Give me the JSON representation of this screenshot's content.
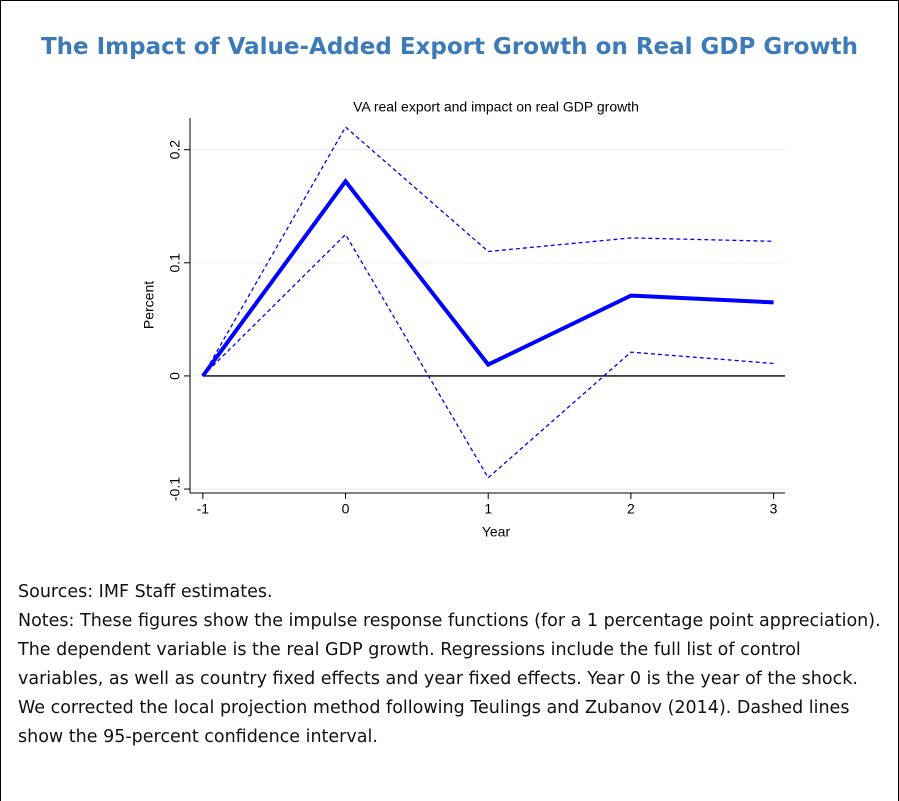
{
  "chart_data": {
    "type": "line",
    "title": "The Impact of Value-Added Export Growth on Real GDP Growth",
    "subtitle": "VA real export and impact on real GDP growth",
    "x_label": "Year",
    "y_label": "Percent",
    "x": [
      -1,
      0,
      1,
      2,
      3
    ],
    "series": [
      {
        "color": "#0000ff",
        "style": "solid",
        "values": [
          0,
          0.172,
          0.01,
          0.071,
          0.065
        ]
      },
      {
        "color": "#0000ff",
        "style": "dashed",
        "values": [
          0,
          0.22,
          0.11,
          0.122,
          0.119
        ]
      },
      {
        "color": "#0000ff",
        "style": "dashed",
        "values": [
          0,
          0.125,
          -0.09,
          0.021,
          0.011
        ]
      }
    ],
    "xlim": [
      -1.09,
      3.08
    ],
    "xticks": [
      -1,
      0,
      1,
      2,
      3
    ],
    "ylim": [
      -0.1035,
      0.228
    ],
    "yticks": [
      -0.1,
      0,
      0.1,
      0.2
    ],
    "grid": true,
    "reference_line": 0
  },
  "sources": "Sources: IMF Staff estimates.",
  "notes": "Notes: These figures show the impulse response functions (for a 1 percentage point appreciation). The dependent variable is the real GDP growth. Regressions include the full list of control variables, as well as country fixed effects and year fixed effects. Year 0 is the year of the shock. We corrected the local projection method following Teulings and Zubanov (2014). Dashed lines show the 95-percent confidence interval."
}
